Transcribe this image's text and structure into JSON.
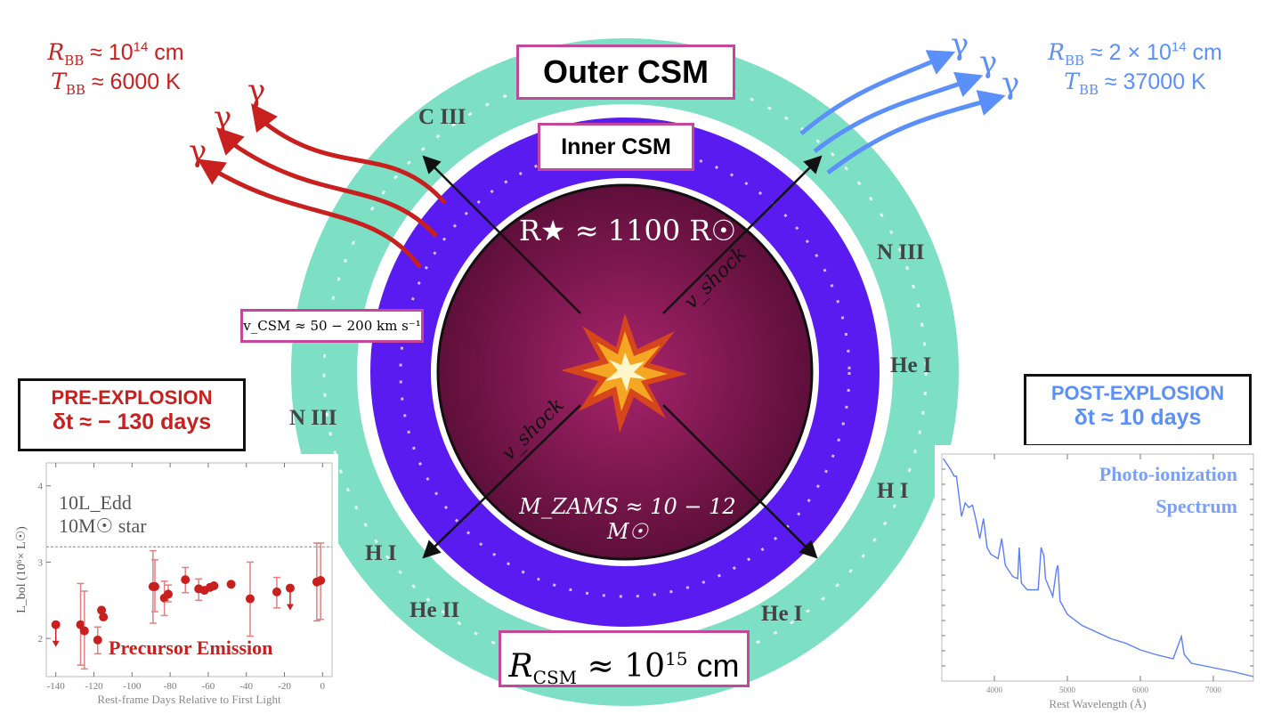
{
  "left_params": {
    "radius": "R_BB ≈ 10^14 cm",
    "radius_sym": "R",
    "radius_sub": "BB",
    "radius_val": " ≈ 10",
    "radius_exp": "14",
    "radius_unit": " cm",
    "temp_sym": "T",
    "temp_sub": "BB",
    "temp_val": " ≈ 6000 K"
  },
  "right_params": {
    "radius_sym": "R",
    "radius_sub": "BB",
    "radius_val": " ≈ 2 × 10",
    "radius_exp": "14",
    "radius_unit": " cm",
    "temp_sym": "T",
    "temp_sub": "BB",
    "temp_val": " ≈ 37000 K"
  },
  "photon_symbol": "γ",
  "labels": {
    "outer_csm": "Outer CSM",
    "inner_csm": "Inner CSM",
    "star_radius": "R★ ≈ 1100 R☉",
    "star_mass": "M_ZAMS ≈ 10 − 12 M☉",
    "v_shock": "v_shock",
    "v_csm": "v_CSM ≈ 50 − 200 km s⁻¹",
    "r_csm_sym": "R",
    "r_csm_sub": "CSM",
    "r_csm_val": " ≈ 10",
    "r_csm_exp": "15",
    "r_csm_unit": " cm"
  },
  "lines": [
    "C III",
    "N III",
    "He I",
    "H I",
    "He I",
    "He II",
    "H I",
    "N III"
  ],
  "pre_explosion": {
    "title": "PRE-EXPLOSION",
    "time": "δt ≈ − 130 days"
  },
  "post_explosion": {
    "title": "POST-EXPLOSION",
    "time": "δt ≈ 10 days"
  },
  "colors": {
    "outer_csm": "#7ddfc3",
    "inner_csm": "#5a1bf0",
    "star": "#8a1a55",
    "pre": "#c8201e",
    "post": "#5b8ff9",
    "box_border": "#c4479a"
  },
  "insets": [
    {
      "type": "scatter",
      "annotation": "Precursor Emission",
      "reference_line_label_1": "10L_Edd",
      "reference_line_label_2": "10M☉ star",
      "reference_line": 3.2,
      "xlabel": "Rest-frame Days Relative to First Light",
      "ylabel": "L_bol (10⁶× L☉)",
      "xlim": [
        -145,
        5
      ],
      "ylim": [
        1.5,
        4.3
      ],
      "xticks": [
        "-140",
        "-120",
        "-100",
        "-80",
        "-60",
        "-40",
        "-20",
        "0"
      ],
      "yticks": [
        "2",
        "3",
        "4"
      ],
      "points": [
        {
          "x": -140,
          "y": 2.18,
          "upper_limit": true
        },
        {
          "x": -127,
          "y": 2.18,
          "lo": 1.65,
          "hi": 2.72
        },
        {
          "x": -125,
          "y": 2.1,
          "lo": 1.6,
          "hi": 2.62
        },
        {
          "x": -118,
          "y": 1.98,
          "lo": 1.8,
          "hi": 2.15
        },
        {
          "x": -116,
          "y": 2.37
        },
        {
          "x": -115,
          "y": 2.28
        },
        {
          "x": -89,
          "y": 2.68,
          "lo": 2.2,
          "hi": 3.15
        },
        {
          "x": -88,
          "y": 2.68,
          "lo": 2.35,
          "hi": 3.03
        },
        {
          "x": -83,
          "y": 2.53,
          "lo": 2.3,
          "hi": 2.75
        },
        {
          "x": -81,
          "y": 2.58,
          "lo": 2.48,
          "hi": 2.7
        },
        {
          "x": -72,
          "y": 2.77,
          "lo": 2.6,
          "hi": 2.93
        },
        {
          "x": -65,
          "y": 2.65,
          "lo": 2.5,
          "hi": 2.78
        },
        {
          "x": -62,
          "y": 2.63
        },
        {
          "x": -59,
          "y": 2.67
        },
        {
          "x": -57,
          "y": 2.69
        },
        {
          "x": -48,
          "y": 2.71
        },
        {
          "x": -38,
          "y": 2.52,
          "lo": 2.03,
          "hi": 3.0
        },
        {
          "x": -24,
          "y": 2.61,
          "lo": 2.4,
          "hi": 2.8
        },
        {
          "x": -17,
          "y": 2.66,
          "upper_limit": true
        },
        {
          "x": -3,
          "y": 2.74,
          "lo": 2.23,
          "hi": 3.25
        },
        {
          "x": -1,
          "y": 2.76,
          "lo": 2.25,
          "hi": 3.25
        }
      ]
    },
    {
      "type": "line",
      "annotation_1": "Photo-ionization",
      "annotation_2": "Spectrum",
      "xlabel": "Rest Wavelength (Å)",
      "xlim": [
        3280,
        7550
      ],
      "ylim": [
        0,
        1.02
      ],
      "xticks": [
        "4000",
        "5000",
        "6000",
        "7000"
      ],
      "x": [
        3300,
        3400,
        3450,
        3480,
        3550,
        3600,
        3650,
        3700,
        3750,
        3800,
        3850,
        3900,
        3950,
        4050,
        4100,
        4150,
        4250,
        4320,
        4340,
        4370,
        4450,
        4600,
        4640,
        4680,
        4700,
        4800,
        4850,
        4870,
        4900,
        5000,
        5200,
        5400,
        5600,
        5800,
        6000,
        6200,
        6450,
        6540,
        6563,
        6600,
        6700,
        7000,
        7300,
        7550
      ],
      "y": [
        1.0,
        0.95,
        0.92,
        0.92,
        0.74,
        0.8,
        0.78,
        0.79,
        0.72,
        0.64,
        0.73,
        0.6,
        0.57,
        0.55,
        0.64,
        0.52,
        0.47,
        0.46,
        0.6,
        0.44,
        0.41,
        0.41,
        0.6,
        0.56,
        0.46,
        0.38,
        0.5,
        0.52,
        0.36,
        0.3,
        0.25,
        0.22,
        0.19,
        0.17,
        0.14,
        0.12,
        0.1,
        0.18,
        0.2,
        0.12,
        0.08,
        0.06,
        0.04,
        0.02
      ]
    }
  ]
}
